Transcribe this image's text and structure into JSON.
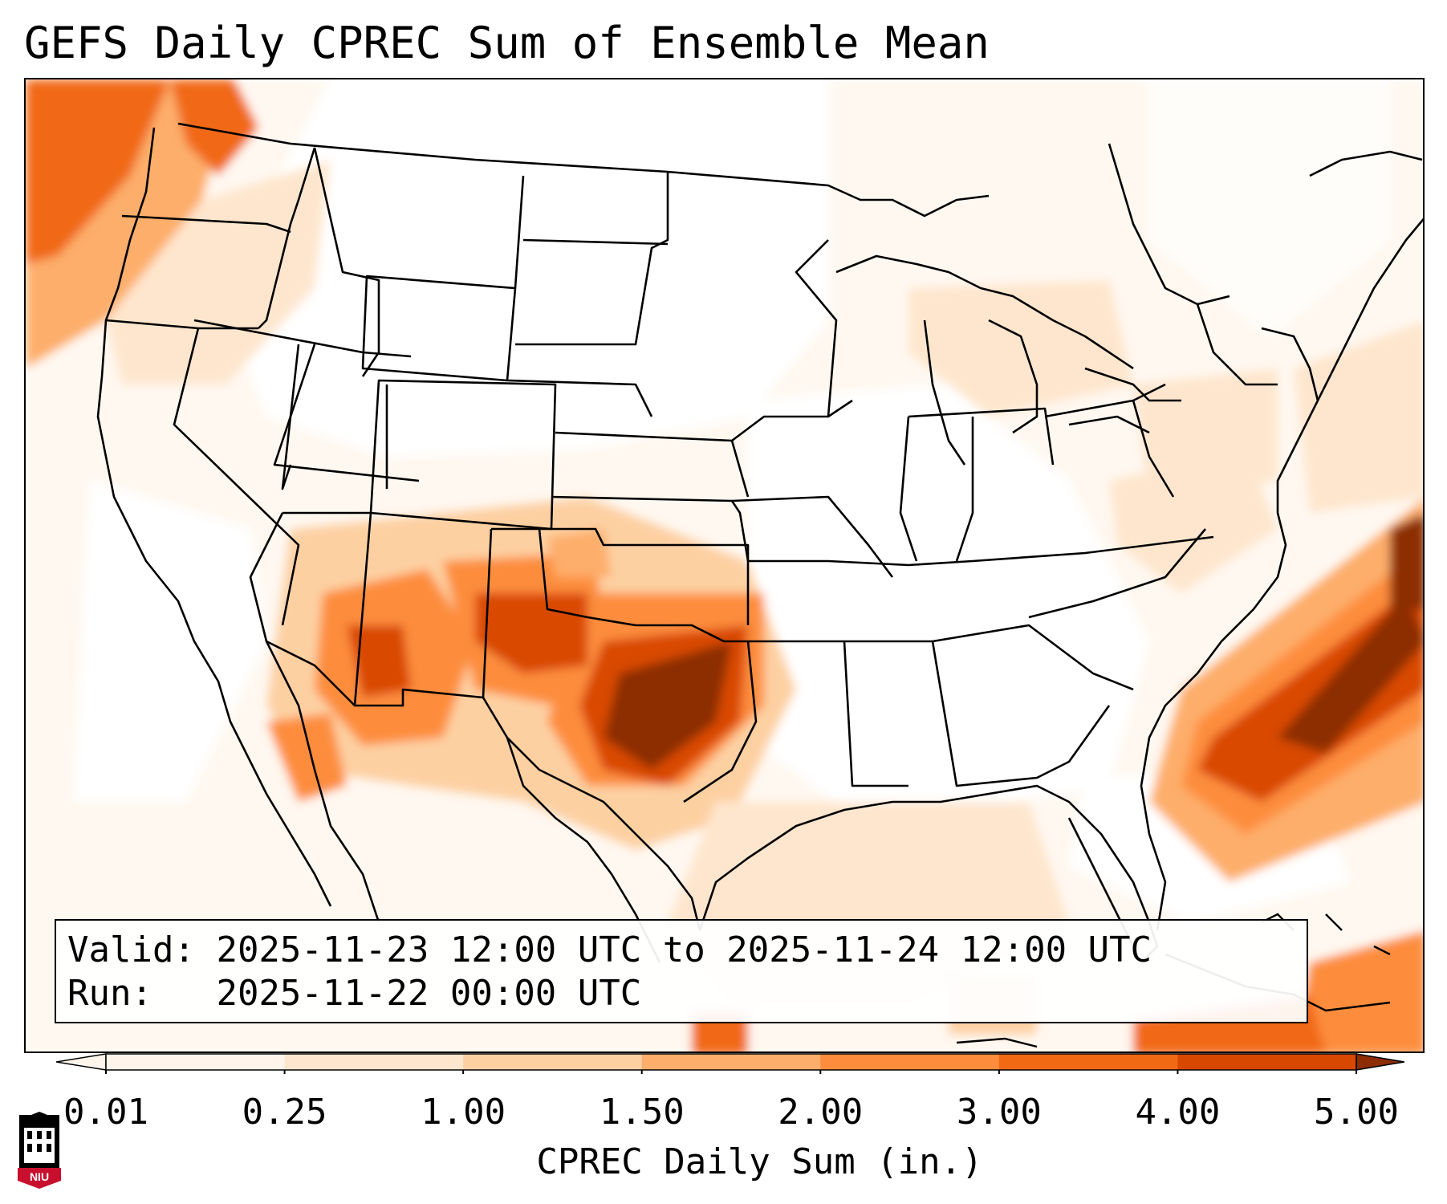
{
  "header": {
    "title": "GEFS Daily CPREC Sum of Ensemble Mean"
  },
  "info": {
    "valid_label": "Valid:",
    "valid_value": "2025-11-23 12:00 UTC to 2025-11-24 12:00 UTC",
    "run_label": "Run:",
    "run_value": "2025-11-22 00:00 UTC"
  },
  "colorbar": {
    "label": "CPREC Daily Sum (in.)",
    "ticks": [
      "0.01",
      "0.25",
      "1.00",
      "1.50",
      "2.00",
      "3.00",
      "4.00",
      "5.00"
    ],
    "colors": [
      "#fff5eb",
      "#fee6ce",
      "#fdd0a2",
      "#fdae6b",
      "#fd8d3c",
      "#f16913",
      "#d94801",
      "#8c2d04"
    ],
    "units": "in."
  },
  "logo": {
    "name": "NIU",
    "colors": {
      "red": "#c8102e",
      "black": "#000000"
    }
  }
}
